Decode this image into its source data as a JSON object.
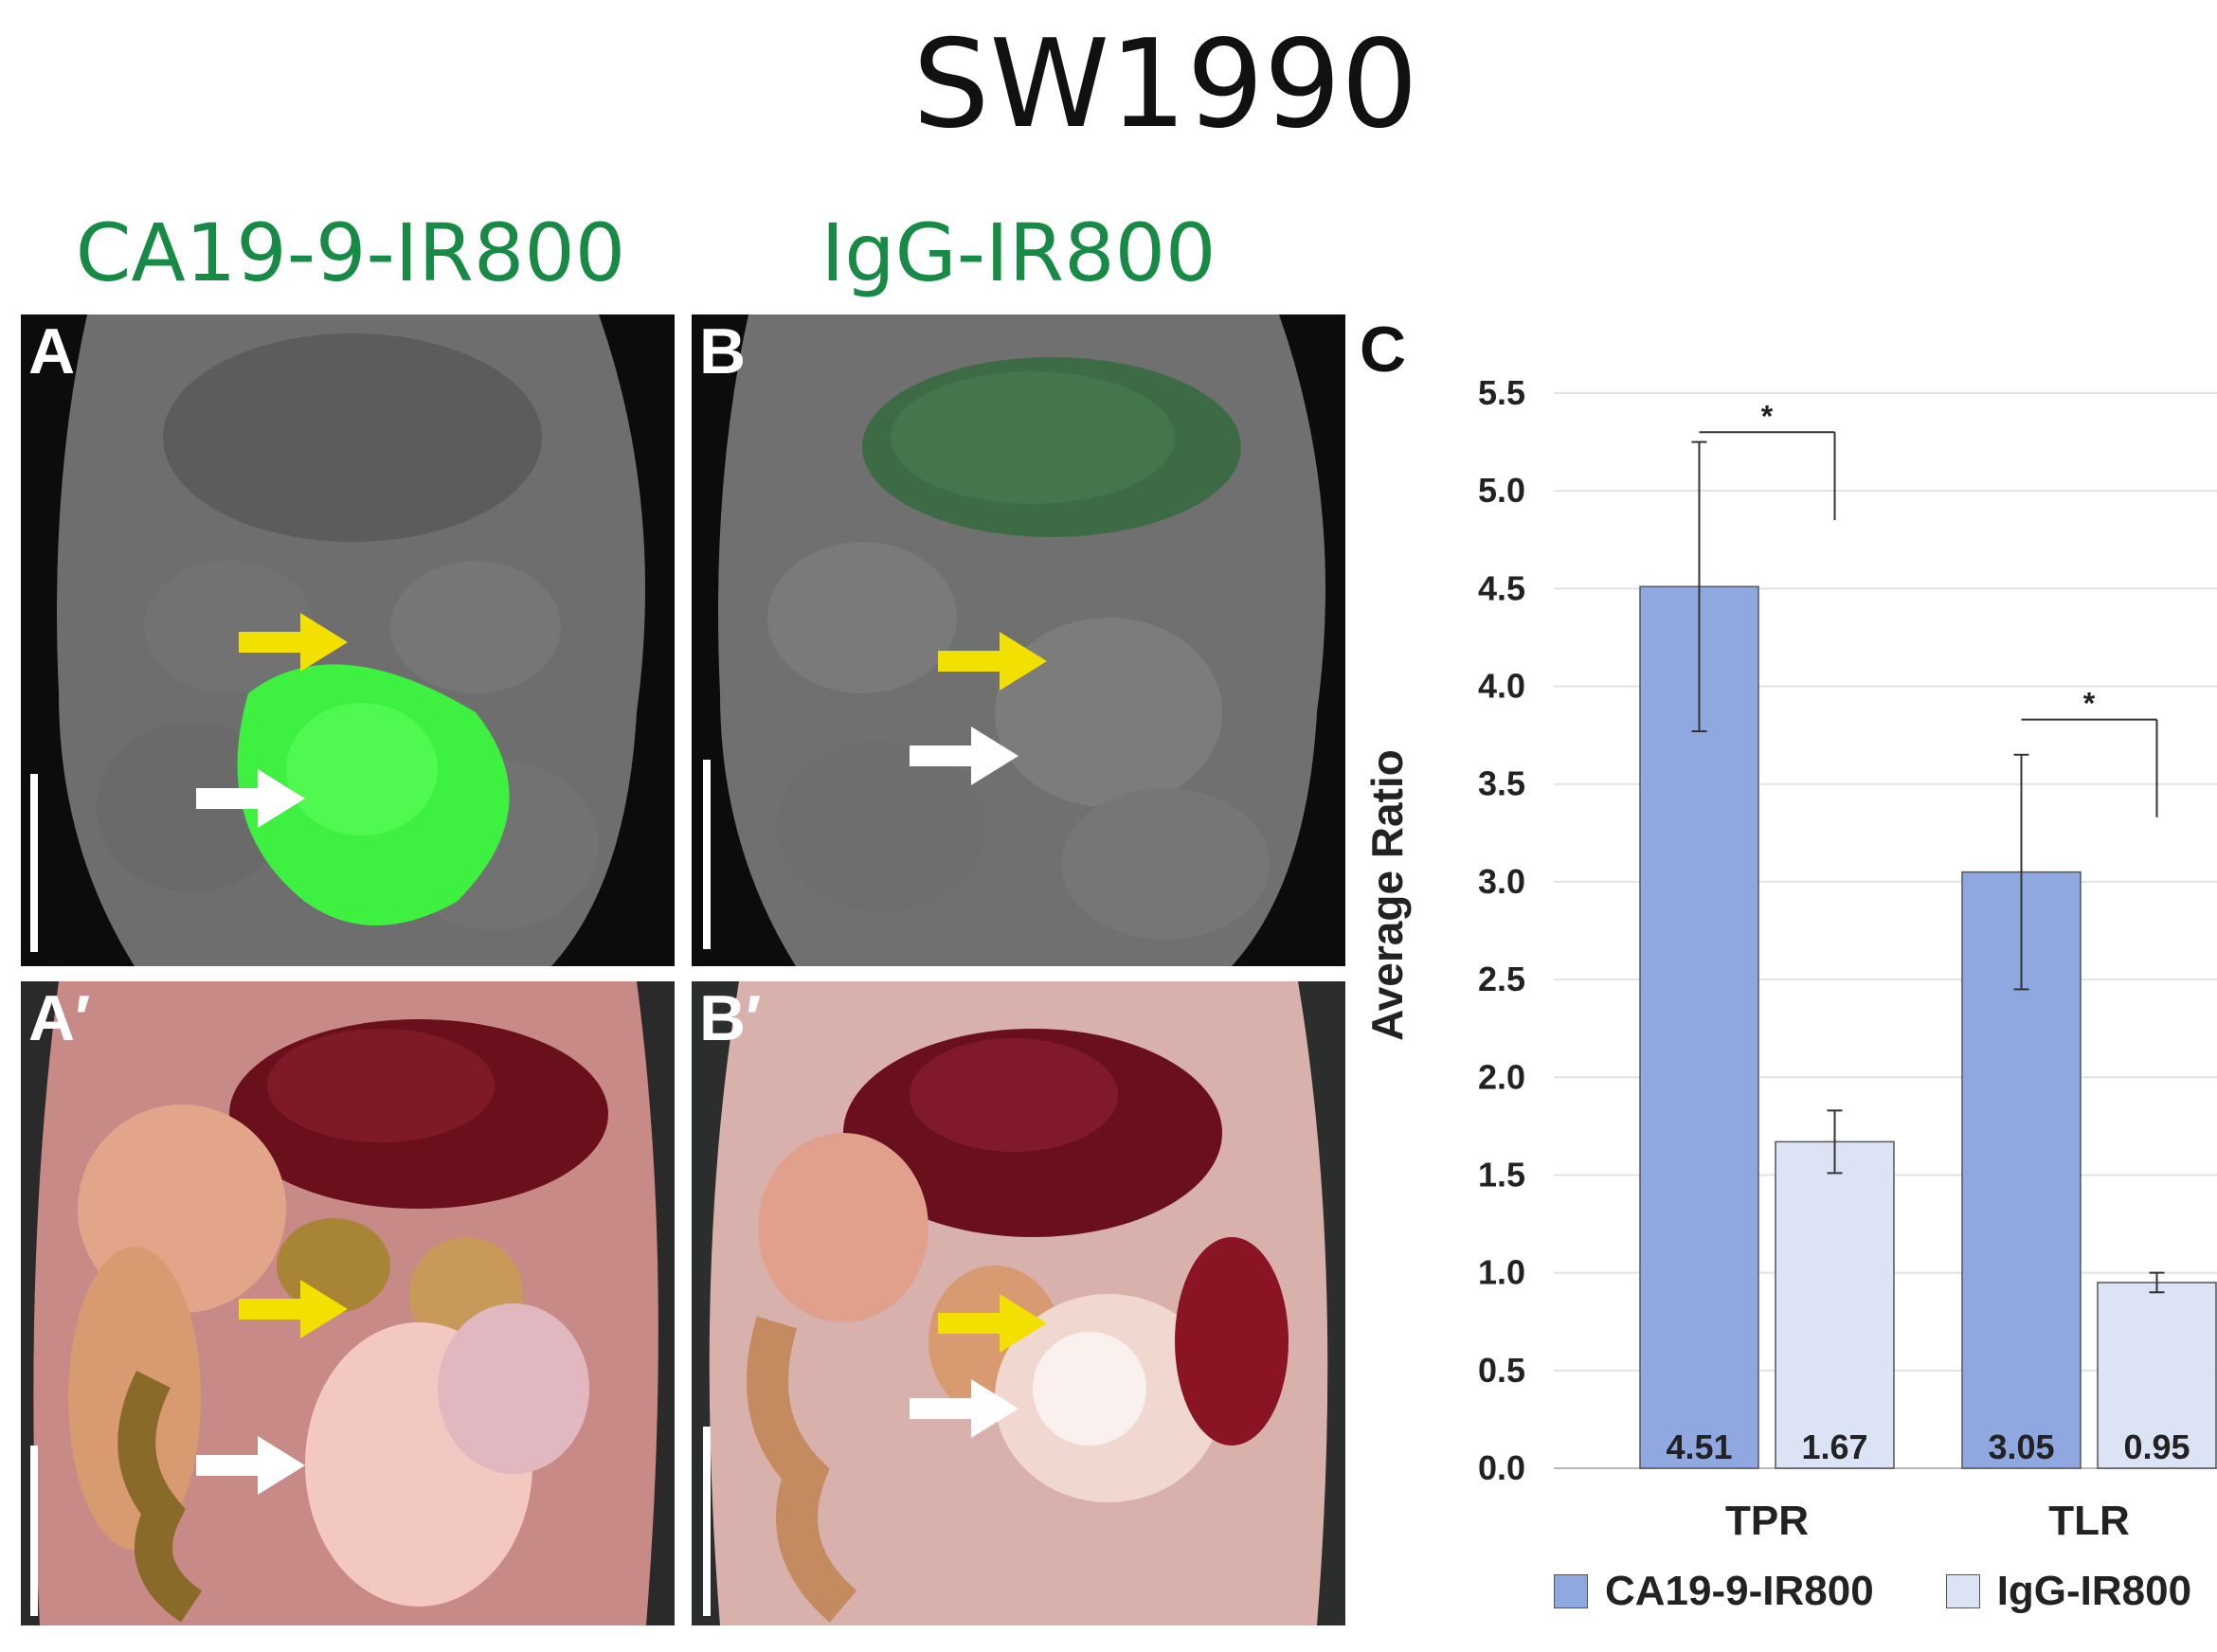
{
  "figure": {
    "title": "SW1990",
    "col_titles": [
      "CA19-9-IR800",
      "IgG-IR800"
    ],
    "panel_labels": [
      "A",
      "B",
      "A′",
      "B′",
      "C"
    ]
  },
  "chart_data": {
    "type": "bar",
    "categories": [
      "TPR",
      "TLR"
    ],
    "series": [
      {
        "name": "CA19-9-IR800",
        "values": [
          4.51,
          3.05
        ],
        "error": [
          0.74,
          0.6
        ],
        "color": "#8fa9e0"
      },
      {
        "name": "IgG-IR800",
        "values": [
          1.67,
          0.95
        ],
        "error": [
          0.16,
          0.05
        ],
        "color": "#dce3f4"
      }
    ],
    "value_labels": [
      [
        "4.51",
        "3.05"
      ],
      [
        "1.67",
        "0.95"
      ]
    ],
    "ylabel": "Average Ratio",
    "ylim": [
      0,
      5.5
    ],
    "yticks": [
      "0.0",
      "0.5",
      "1.0",
      "1.5",
      "2.0",
      "2.5",
      "3.0",
      "3.5",
      "4.0",
      "4.5",
      "5.0",
      "5.5"
    ],
    "significance": [
      "*",
      "*"
    ],
    "grid": true,
    "legend": "bottom"
  }
}
